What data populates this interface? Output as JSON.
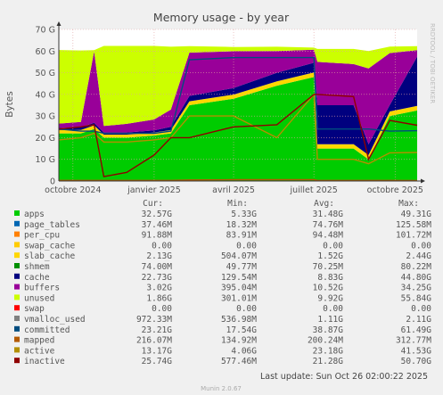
{
  "chart_data": {
    "type": "area",
    "title": "Memory usage - by year",
    "ylabel": "Bytes",
    "side_label": "RRDTOOL / TOBI OETIKER",
    "ylim": [
      0,
      70
    ],
    "y_unit": "G",
    "y_ticks": [
      "0",
      "10 G",
      "20 G",
      "30 G",
      "40 G",
      "50 G",
      "60 G",
      "70 G"
    ],
    "x_ticks": [
      "octobre 2024",
      "janvier 2025",
      "avril 2025",
      "juillet 2025",
      "octobre 2025"
    ],
    "grid": true,
    "x_range": [
      "2024-09-15",
      "2025-10-26"
    ],
    "snapshots": [
      {
        "date": "2024-09-15",
        "apps": 22,
        "slab_cache": 1.5,
        "cache": 1.0,
        "buffers": 2.0,
        "unused": 34,
        "committed": 24,
        "mapped": 0.3,
        "active": 19,
        "inactive": 24
      },
      {
        "date": "2024-10-10",
        "apps": 22,
        "slab_cache": 1.6,
        "cache": 1.2,
        "buffers": 2.5,
        "unused": 33,
        "committed": 23,
        "mapped": 0.3,
        "active": 20,
        "inactive": 25
      },
      {
        "date": "2024-10-25",
        "apps": 24,
        "slab_cache": 1.7,
        "cache": 1.2,
        "buffers": 33,
        "unused": 0.5,
        "committed": 23,
        "mapped": 0.3,
        "active": 22,
        "inactive": 26
      },
      {
        "date": "2024-11-05",
        "apps": 20,
        "slab_cache": 1.4,
        "cache": 1.0,
        "buffers": 3.0,
        "unused": 37,
        "committed": 22,
        "mapped": 0.3,
        "active": 18,
        "inactive": 2
      },
      {
        "date": "2024-12-01",
        "apps": 20,
        "slab_cache": 1.4,
        "cache": 1.0,
        "buffers": 4.0,
        "unused": 36,
        "committed": 22,
        "mapped": 0.3,
        "active": 18,
        "inactive": 4
      },
      {
        "date": "2025-01-01",
        "apps": 21,
        "slab_cache": 1.4,
        "cache": 1.0,
        "buffers": 5.0,
        "unused": 34,
        "committed": 22,
        "mapped": 0.3,
        "active": 19,
        "inactive": 12
      },
      {
        "date": "2025-01-20",
        "apps": 22,
        "slab_cache": 1.5,
        "cache": 1.5,
        "buffers": 8.0,
        "unused": 29,
        "committed": 23,
        "mapped": 0.3,
        "active": 20,
        "inactive": 20
      },
      {
        "date": "2025-02-10",
        "apps": 35,
        "slab_cache": 1.8,
        "cache": 2.5,
        "buffers": 20,
        "unused": 3.0,
        "committed": 56,
        "mapped": 0.5,
        "active": 30,
        "inactive": 20
      },
      {
        "date": "2025-04-01",
        "apps": 38,
        "slab_cache": 1.9,
        "cache": 3.0,
        "buffers": 17,
        "unused": 2.0,
        "committed": 57,
        "mapped": 0.6,
        "active": 30,
        "inactive": 25
      },
      {
        "date": "2025-05-20",
        "apps": 44,
        "slab_cache": 2.0,
        "cache": 4.0,
        "buffers": 10,
        "unused": 2.0,
        "committed": 57,
        "mapped": 0.6,
        "active": 20,
        "inactive": 26
      },
      {
        "date": "2025-07-01",
        "apps": 48,
        "slab_cache": 2.1,
        "cache": 4.5,
        "buffers": 6.0,
        "unused": 1.0,
        "committed": 57,
        "mapped": 0.6,
        "active": 40,
        "inactive": 40
      },
      {
        "date": "2025-07-05",
        "apps": 15,
        "slab_cache": 2.0,
        "cache": 18,
        "buffers": 20,
        "unused": 6.0,
        "committed": 24,
        "mapped": 0.3,
        "active": 10,
        "inactive": 40
      },
      {
        "date": "2025-08-15",
        "apps": 15,
        "slab_cache": 2.0,
        "cache": 18,
        "buffers": 19,
        "unused": 7.0,
        "committed": 24,
        "mapped": 0.3,
        "active": 10,
        "inactive": 39
      },
      {
        "date": "2025-09-01",
        "apps": 10,
        "slab_cache": 2.0,
        "cache": 5.0,
        "buffers": 35,
        "unused": 8.0,
        "committed": 24,
        "mapped": 0.3,
        "active": 8,
        "inactive": 10
      },
      {
        "date": "2025-09-25",
        "apps": 30,
        "slab_cache": 2.1,
        "cache": 3.0,
        "buffers": 24,
        "unused": 3.0,
        "committed": 23,
        "mapped": 0.3,
        "active": 13,
        "inactive": 28
      },
      {
        "date": "2025-10-26",
        "apps": 32.57,
        "slab_cache": 2.13,
        "cache": 22.73,
        "buffers": 3.02,
        "unused": 1.86,
        "committed": 23.21,
        "mapped": 0.22,
        "active": 13.17,
        "inactive": 25.74
      }
    ],
    "series": [
      {
        "name": "apps",
        "color": "#00cc00",
        "cur": "32.57G",
        "min": "5.33G",
        "avg": "31.48G",
        "max": "49.31G"
      },
      {
        "name": "page_tables",
        "color": "#0066b3",
        "cur": "37.46M",
        "min": "18.32M",
        "avg": "74.76M",
        "max": "125.58M"
      },
      {
        "name": "per_cpu",
        "color": "#ff8000",
        "cur": "91.88M",
        "min": "83.91M",
        "avg": "94.48M",
        "max": "101.72M"
      },
      {
        "name": "swap_cache",
        "color": "#ffcc00",
        "cur": "0.00",
        "min": "0.00",
        "avg": "0.00",
        "max": "0.00"
      },
      {
        "name": "slab_cache",
        "color": "#ffd700",
        "cur": "2.13G",
        "min": "504.07M",
        "avg": "1.52G",
        "max": "2.44G"
      },
      {
        "name": "shmem",
        "color": "#008f00",
        "cur": "74.00M",
        "min": "49.77M",
        "avg": "70.25M",
        "max": "80.22M"
      },
      {
        "name": "cache",
        "color": "#00007f",
        "cur": "22.73G",
        "min": "129.54M",
        "avg": "8.83G",
        "max": "44.80G"
      },
      {
        "name": "buffers",
        "color": "#990099",
        "cur": "3.02G",
        "min": "395.04M",
        "avg": "10.52G",
        "max": "34.25G"
      },
      {
        "name": "unused",
        "color": "#ccff00",
        "cur": "1.86G",
        "min": "301.01M",
        "avg": "9.92G",
        "max": "55.84G"
      },
      {
        "name": "swap",
        "color": "#ff0000",
        "cur": "0.00",
        "min": "0.00",
        "avg": "0.00",
        "max": "0.00"
      },
      {
        "name": "vmalloc_used",
        "color": "#808080",
        "cur": "972.33M",
        "min": "536.98M",
        "avg": "1.11G",
        "max": "2.11G"
      },
      {
        "name": "committed",
        "color": "#004d7f",
        "cur": "23.21G",
        "min": "17.54G",
        "avg": "38.87G",
        "max": "61.49G"
      },
      {
        "name": "mapped",
        "color": "#b35a00",
        "cur": "216.07M",
        "min": "134.92M",
        "avg": "200.24M",
        "max": "312.77M"
      },
      {
        "name": "active",
        "color": "#b38f00",
        "cur": "13.17G",
        "min": "4.06G",
        "avg": "23.18G",
        "max": "41.53G"
      },
      {
        "name": "inactive",
        "color": "#8f0000",
        "cur": "25.74G",
        "min": "577.46M",
        "avg": "21.28G",
        "max": "50.70G"
      }
    ]
  },
  "table_headers": {
    "cur": "Cur:",
    "min": "Min:",
    "avg": "Avg:",
    "max": "Max:"
  },
  "last_update": "Last update: Sun Oct 26 02:00:22 2025",
  "footer": "Munin 2.0.67"
}
